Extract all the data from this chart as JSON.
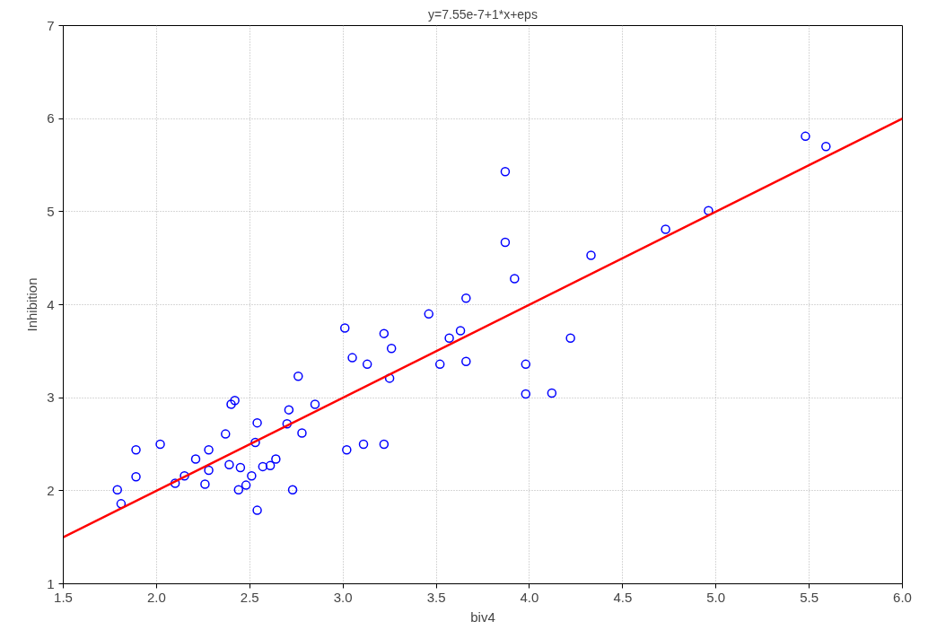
{
  "chart_data": {
    "type": "scatter",
    "title": "y=7.55e-7+1*x+eps",
    "xlabel": "biv4",
    "ylabel": "Inhibition",
    "xlim": [
      1.5,
      6.0
    ],
    "ylim": [
      1,
      7
    ],
    "xticks": [
      {
        "value": 1.5,
        "label": "1.5"
      },
      {
        "value": 2,
        "label": "2.0"
      },
      {
        "value": 2.5,
        "label": "2.5"
      },
      {
        "value": 3,
        "label": "3.0"
      },
      {
        "value": 3.5,
        "label": "3.5"
      },
      {
        "value": 4,
        "label": "4.0"
      },
      {
        "value": 4.5,
        "label": "4.5"
      },
      {
        "value": 5,
        "label": "5.0"
      },
      {
        "value": 5.5,
        "label": "5.5"
      },
      {
        "value": 6,
        "label": "6.0"
      }
    ],
    "yticks": [
      1,
      2,
      3,
      4,
      5,
      6,
      7
    ],
    "grid": true,
    "series": [
      {
        "marker": "circle",
        "color": "#0000ff",
        "x": [
          1.79,
          1.81,
          1.89,
          1.89,
          2.02,
          2.1,
          2.15,
          2.21,
          2.26,
          2.28,
          2.28,
          2.37,
          2.39,
          2.4,
          2.42,
          2.44,
          2.45,
          2.48,
          2.51,
          2.53,
          2.54,
          2.54,
          2.57,
          2.61,
          2.64,
          2.7,
          2.71,
          2.73,
          2.76,
          2.78,
          2.85,
          3.01,
          3.02,
          3.05,
          3.11,
          3.13,
          3.22,
          3.22,
          3.25,
          3.26,
          3.46,
          3.52,
          3.57,
          3.63,
          3.66,
          3.66,
          3.87,
          3.87,
          3.92,
          3.98,
          3.98,
          4.12,
          4.22,
          4.33,
          4.73,
          4.96,
          5.48,
          5.59
        ],
        "values": [
          2.01,
          1.86,
          2.44,
          2.15,
          2.5,
          2.08,
          2.16,
          2.34,
          2.07,
          2.44,
          2.22,
          2.61,
          2.28,
          2.93,
          2.97,
          2.01,
          2.25,
          2.06,
          2.16,
          2.52,
          2.73,
          1.79,
          2.26,
          2.27,
          2.34,
          2.72,
          2.87,
          2.01,
          3.23,
          2.62,
          2.93,
          3.75,
          2.44,
          3.43,
          2.5,
          3.36,
          2.5,
          3.69,
          3.21,
          3.53,
          3.9,
          3.36,
          3.64,
          3.72,
          4.07,
          3.39,
          5.43,
          4.67,
          4.28,
          3.36,
          3.04,
          3.05,
          3.64,
          4.53,
          4.81,
          5.01,
          5.81,
          5.7
        ]
      },
      {
        "type": "line",
        "marker": "none",
        "color": "#ff0000",
        "x": [
          1.5,
          6.0
        ],
        "values": [
          1.5,
          6.0
        ]
      }
    ]
  }
}
